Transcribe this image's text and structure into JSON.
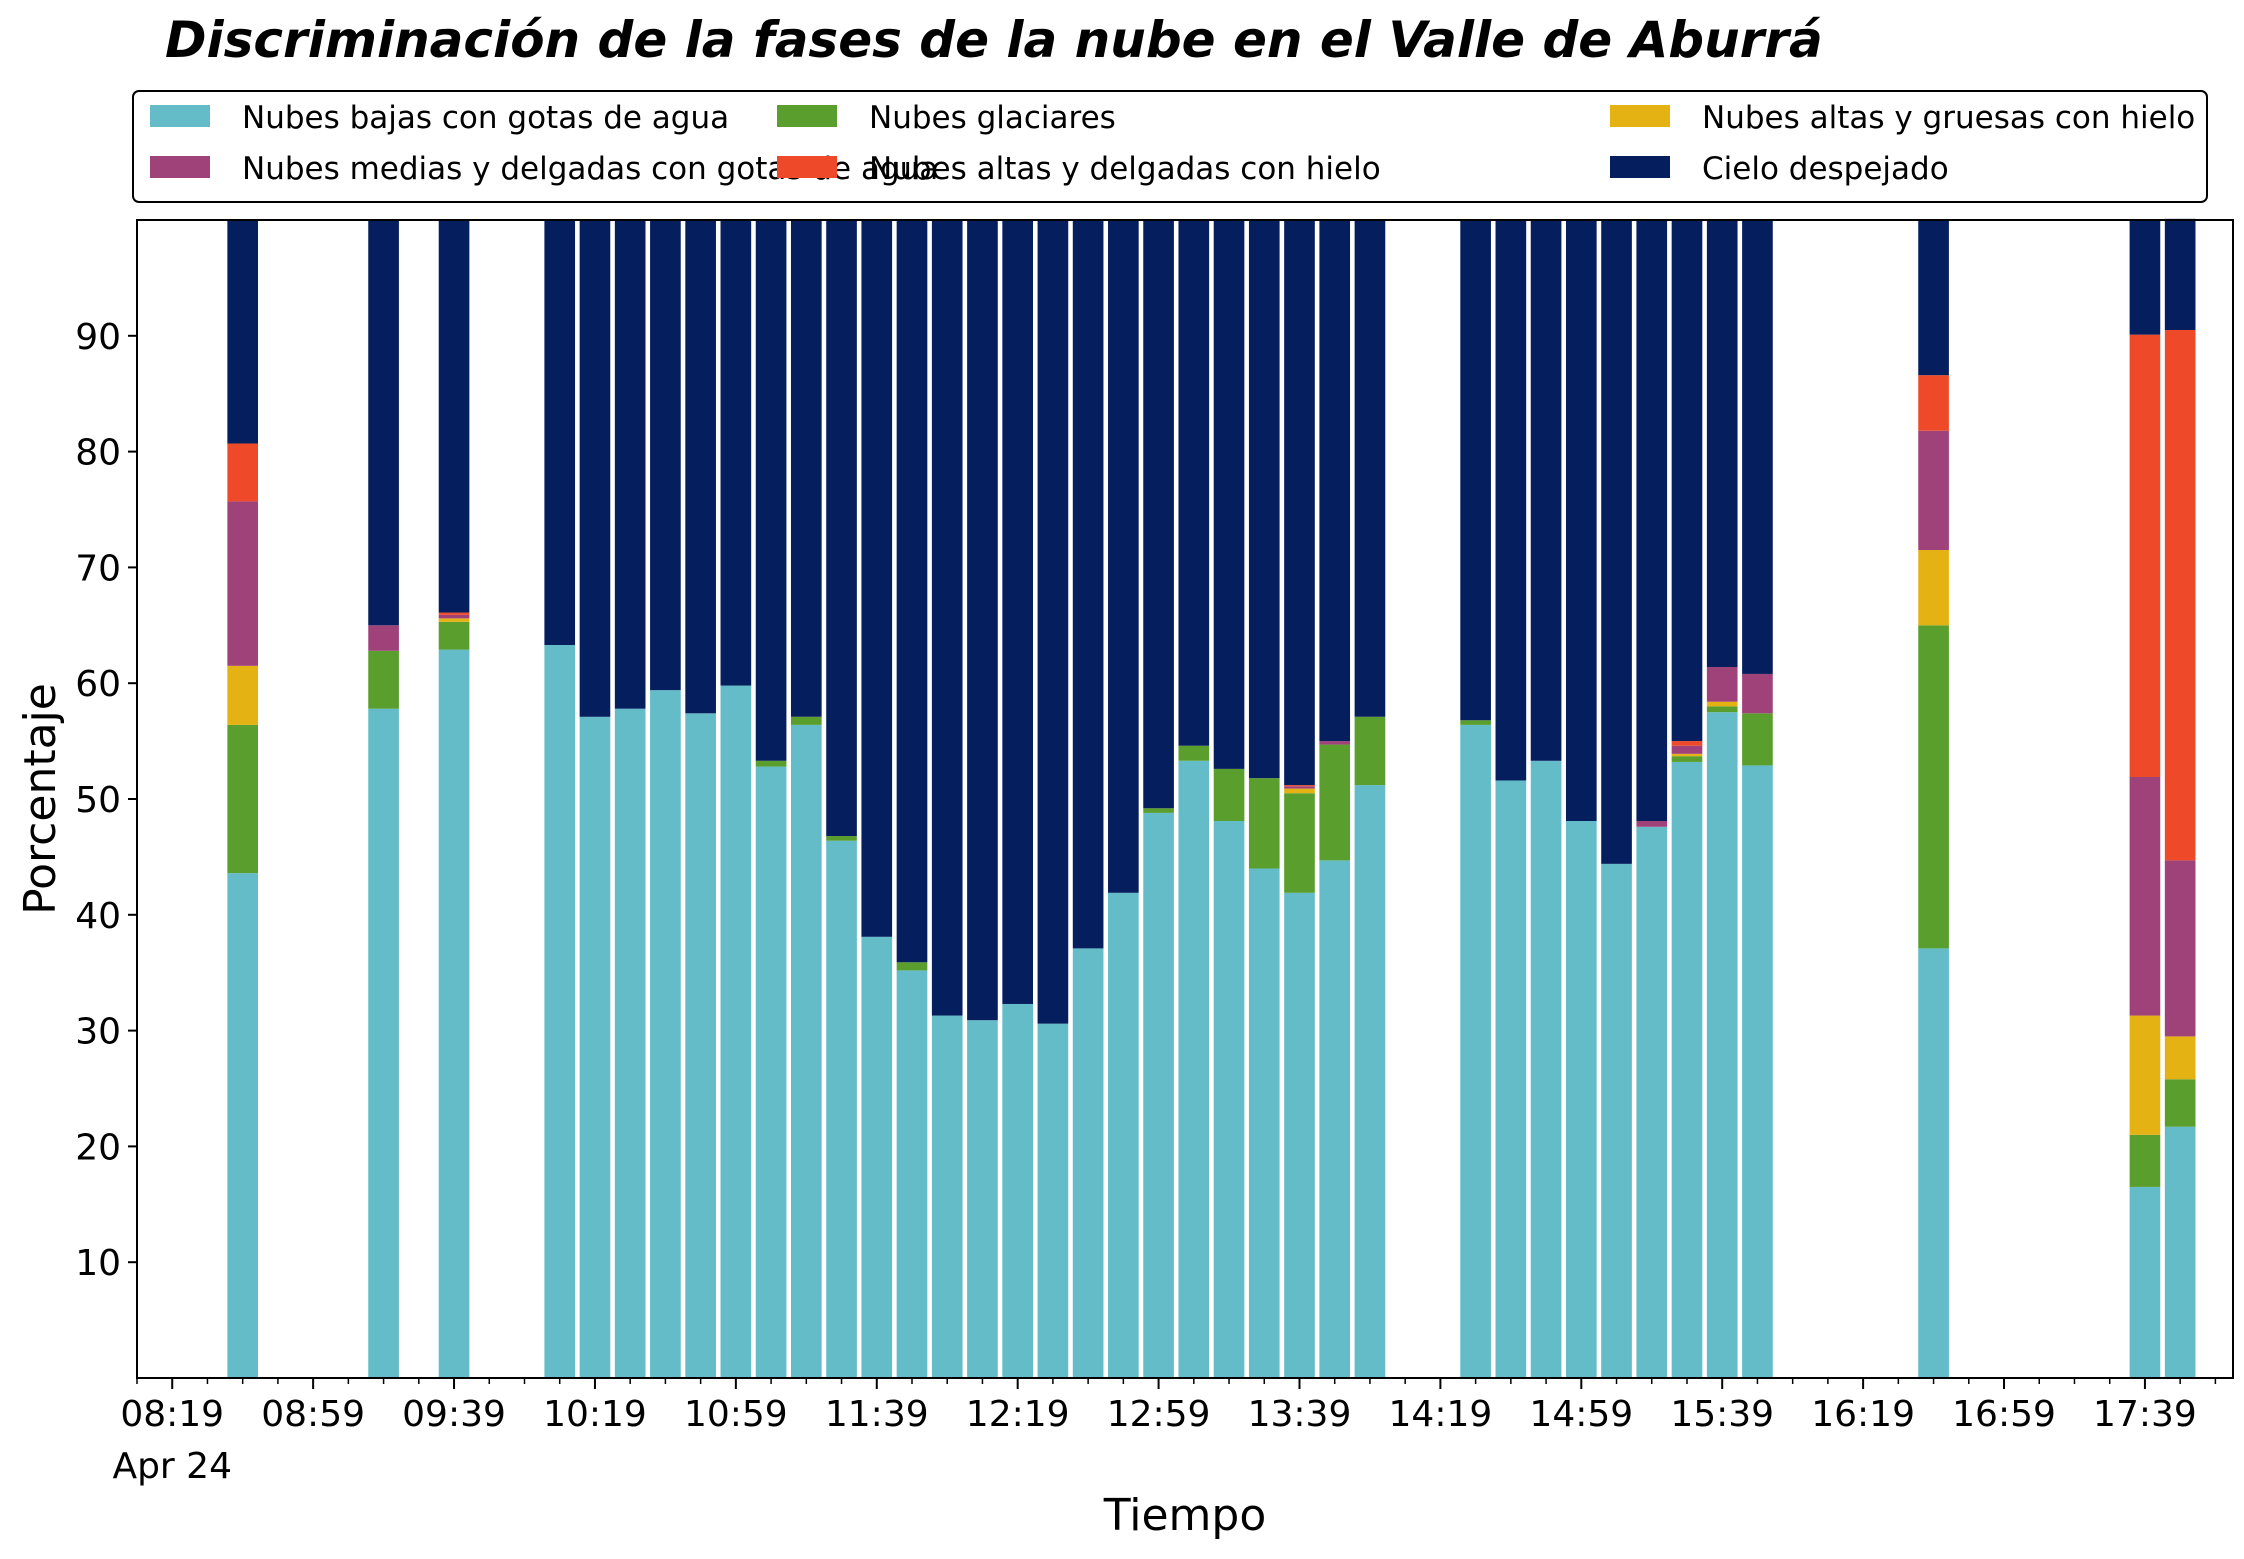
{
  "chart_data": {
    "type": "bar",
    "stacked": true,
    "title": "Discriminación de la fases de la nube en el Valle de Aburrá",
    "xlabel": "Tiempo",
    "ylabel": "Porcentaje",
    "ylim": [
      0,
      100
    ],
    "yticks": [
      10,
      20,
      30,
      40,
      50,
      60,
      70,
      80,
      90
    ],
    "xlim_minutes": [
      -10,
      585
    ],
    "xticks": [
      {
        "minutes": 0,
        "label": "08:19",
        "sublabel": "Apr 24"
      },
      {
        "minutes": 40,
        "label": "08:59"
      },
      {
        "minutes": 80,
        "label": "09:39"
      },
      {
        "minutes": 120,
        "label": "10:19"
      },
      {
        "minutes": 160,
        "label": "10:59"
      },
      {
        "minutes": 200,
        "label": "11:39"
      },
      {
        "minutes": 240,
        "label": "12:19"
      },
      {
        "minutes": 280,
        "label": "12:59"
      },
      {
        "minutes": 320,
        "label": "13:39"
      },
      {
        "minutes": 360,
        "label": "14:19"
      },
      {
        "minutes": 400,
        "label": "14:59"
      },
      {
        "minutes": 440,
        "label": "15:39"
      },
      {
        "minutes": 480,
        "label": "16:19"
      },
      {
        "minutes": 520,
        "label": "16:59"
      },
      {
        "minutes": 560,
        "label": "17:39"
      }
    ],
    "minor_tick_step_minutes": 10,
    "bar_width_minutes": 8.7,
    "x_minutes": [
      20,
      60,
      80,
      110,
      120,
      130,
      140,
      150,
      160,
      170,
      180,
      190,
      200,
      210,
      220,
      230,
      240,
      250,
      260,
      270,
      280,
      290,
      300,
      310,
      320,
      330,
      340,
      370,
      380,
      390,
      400,
      410,
      420,
      430,
      440,
      450,
      500,
      560,
      570
    ],
    "series": [
      {
        "name": "Nubes bajas con gotas de agua",
        "color": "#63bcc8",
        "values": [
          43.6,
          57.8,
          62.9,
          63.3,
          57.1,
          57.8,
          59.4,
          57.4,
          59.8,
          52.8,
          56.4,
          46.4,
          38.1,
          35.2,
          31.3,
          30.9,
          32.3,
          30.6,
          37.1,
          41.9,
          48.8,
          53.3,
          48.1,
          44.0,
          41.9,
          44.7,
          51.2,
          56.4,
          51.6,
          53.3,
          48.1,
          44.4,
          47.6,
          53.2,
          57.5,
          52.9,
          37.1,
          16.5,
          21.7
        ]
      },
      {
        "name": "Nubes glaciares",
        "color": "#5a9e2e",
        "values": [
          12.8,
          5.0,
          2.4,
          0,
          0,
          0,
          0,
          0,
          0,
          0.5,
          0.7,
          0.4,
          0,
          0.7,
          0,
          0,
          0,
          0,
          0,
          0,
          0.4,
          1.3,
          4.5,
          7.8,
          8.6,
          10.0,
          5.9,
          0.4,
          0,
          0,
          0,
          0,
          0,
          0.5,
          0.5,
          4.5,
          27.9,
          4.5,
          4.1
        ]
      },
      {
        "name": "Nubes altas y gruesas con hielo",
        "color": "#e5b213",
        "values": [
          5.1,
          0,
          0.3,
          0,
          0,
          0,
          0,
          0,
          0,
          0,
          0,
          0,
          0,
          0,
          0,
          0,
          0,
          0,
          0,
          0,
          0,
          0,
          0,
          0,
          0.4,
          0,
          0,
          0,
          0,
          0,
          0,
          0,
          0,
          0.2,
          0.4,
          0,
          6.5,
          10.3,
          3.7
        ]
      },
      {
        "name": "Nubes medias y delgadas con gotas de agua",
        "color": "#a0427a",
        "values": [
          14.2,
          2.2,
          0.3,
          0,
          0,
          0,
          0,
          0,
          0,
          0,
          0,
          0,
          0,
          0,
          0,
          0,
          0,
          0,
          0,
          0,
          0,
          0,
          0,
          0,
          0.2,
          0.3,
          0,
          0,
          0,
          0,
          0,
          0,
          0.5,
          0.7,
          3.0,
          3.4,
          10.3,
          20.6,
          15.2
        ]
      },
      {
        "name": "Nubes altas y delgadas con hielo",
        "color": "#ee4a2a",
        "values": [
          5.0,
          0,
          0.2,
          0,
          0,
          0,
          0,
          0,
          0,
          0,
          0,
          0,
          0,
          0,
          0,
          0,
          0,
          0,
          0,
          0,
          0,
          0,
          0,
          0,
          0.1,
          0,
          0,
          0,
          0,
          0,
          0,
          0,
          0,
          0.4,
          0,
          0,
          4.8,
          38.2,
          45.8
        ]
      },
      {
        "name": "Cielo despejado",
        "color": "#051e5d",
        "values": [
          19.3,
          35.0,
          33.9,
          36.7,
          42.9,
          42.2,
          40.6,
          42.6,
          40.2,
          46.7,
          42.9,
          53.2,
          61.9,
          64.1,
          68.7,
          69.1,
          67.7,
          69.4,
          62.9,
          58.1,
          50.8,
          45.4,
          47.4,
          48.2,
          48.8,
          45.0,
          42.9,
          43.2,
          48.4,
          46.7,
          51.9,
          55.6,
          51.9,
          45.0,
          38.6,
          39.2,
          13.4,
          9.9,
          9.6
        ]
      }
    ],
    "legend": {
      "location": "top",
      "columns": 3
    },
    "grid": false
  }
}
